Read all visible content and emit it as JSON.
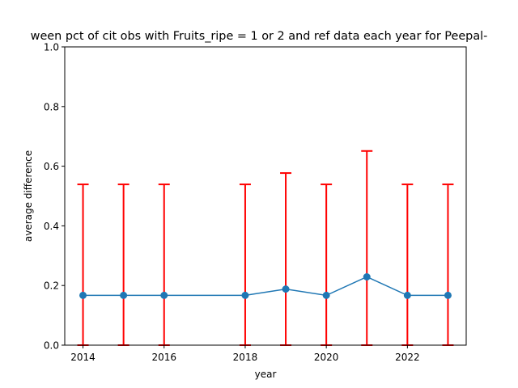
{
  "chart_data": {
    "type": "line",
    "title": "ween pct of cit obs with Fruits_ripe = 1 or 2 and ref data each year for Peepal-",
    "xlabel": "year",
    "ylabel": "average difference",
    "xlim": [
      2013.55,
      2023.45
    ],
    "ylim": [
      0.0,
      1.0
    ],
    "xticks": [
      2014,
      2016,
      2018,
      2020,
      2022
    ],
    "xtick_labels": [
      "2014",
      "2016",
      "2018",
      "2020",
      "2022"
    ],
    "yticks": [
      0.0,
      0.2,
      0.4,
      0.6,
      0.8,
      1.0
    ],
    "ytick_labels": [
      "0.0",
      "0.2",
      "0.4",
      "0.6",
      "0.8",
      "1.0"
    ],
    "grid": false,
    "series": [
      {
        "x": [
          2014,
          2015,
          2016,
          2018,
          2019,
          2020,
          2021,
          2022,
          2023
        ],
        "y": [
          0.167,
          0.167,
          0.167,
          0.167,
          0.188,
          0.167,
          0.229,
          0.167,
          0.167
        ],
        "yerr_lower": [
          0.0,
          0.0,
          0.0,
          0.0,
          0.0,
          0.0,
          0.0,
          0.0,
          0.0
        ],
        "yerr_upper": [
          0.539,
          0.539,
          0.539,
          0.539,
          0.577,
          0.539,
          0.651,
          0.539,
          0.539
        ]
      }
    ],
    "colors": {
      "line": "#1f77b4",
      "errorbar": "#ff0000",
      "axes": "#000000"
    }
  }
}
